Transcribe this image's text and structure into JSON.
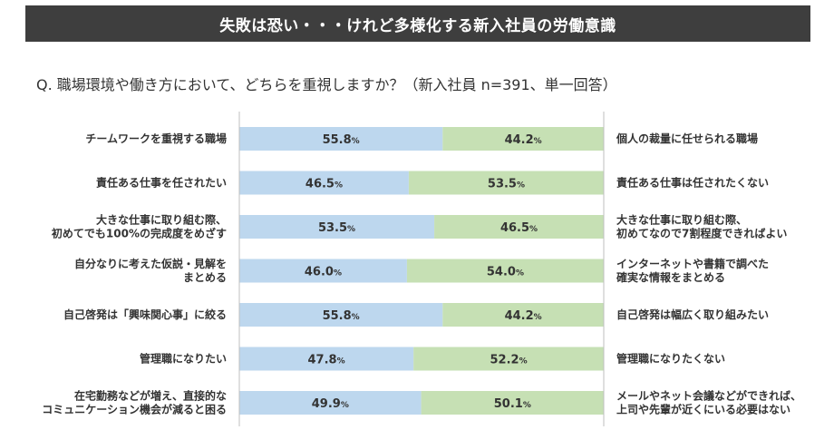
{
  "header": {
    "title": "失敗は恐い・・・けれど多様化する新入社員の労働意識"
  },
  "question": "Q.  職場環境や働き方において、どちらを重視しますか？（新入社員 n=391、単一回答）",
  "colors": {
    "left": "#bdd7ee",
    "right": "#c6e0b4",
    "banner": "#3e3e3e",
    "axis": "#bfbfbf"
  },
  "chart_data": {
    "type": "bar",
    "stacked": true,
    "orientation": "horizontal",
    "xlim": [
      0,
      100
    ],
    "unit": "%",
    "rows": [
      {
        "left_label": [
          "チームワークを重視する職場"
        ],
        "right_label": [
          "個人の裁量に任せられる職場"
        ],
        "left": 55.8,
        "right": 44.2
      },
      {
        "left_label": [
          "責任ある仕事を任されたい"
        ],
        "right_label": [
          "責任ある仕事は任されたくない"
        ],
        "left": 46.5,
        "right": 53.5
      },
      {
        "left_label": [
          "大きな仕事に取り組む際、",
          "初めてでも100%の完成度をめざす"
        ],
        "right_label": [
          "大きな仕事に取り組む際、",
          "初めてなので7割程度できればよい"
        ],
        "left": 53.5,
        "right": 46.5
      },
      {
        "left_label": [
          "自分なりに考えた仮説・見解を",
          "まとめる"
        ],
        "right_label": [
          "インターネットや書籍で調べた",
          "確実な情報をまとめる"
        ],
        "left": 46.0,
        "right": 54.0
      },
      {
        "left_label": [
          "自己啓発は「興味関心事」に絞る"
        ],
        "right_label": [
          "自己啓発は幅広く取り組みたい"
        ],
        "left": 55.8,
        "right": 44.2
      },
      {
        "left_label": [
          "管理職になりたい"
        ],
        "right_label": [
          "管理職になりたくない"
        ],
        "left": 47.8,
        "right": 52.2
      },
      {
        "left_label": [
          "在宅勤務などが増え、直接的な",
          "コミュニケーション機会が減ると困る"
        ],
        "right_label": [
          "メールやネット会議などができれば、",
          "上司や先輩が近くにいる必要はない"
        ],
        "left": 49.9,
        "right": 50.1
      }
    ]
  }
}
